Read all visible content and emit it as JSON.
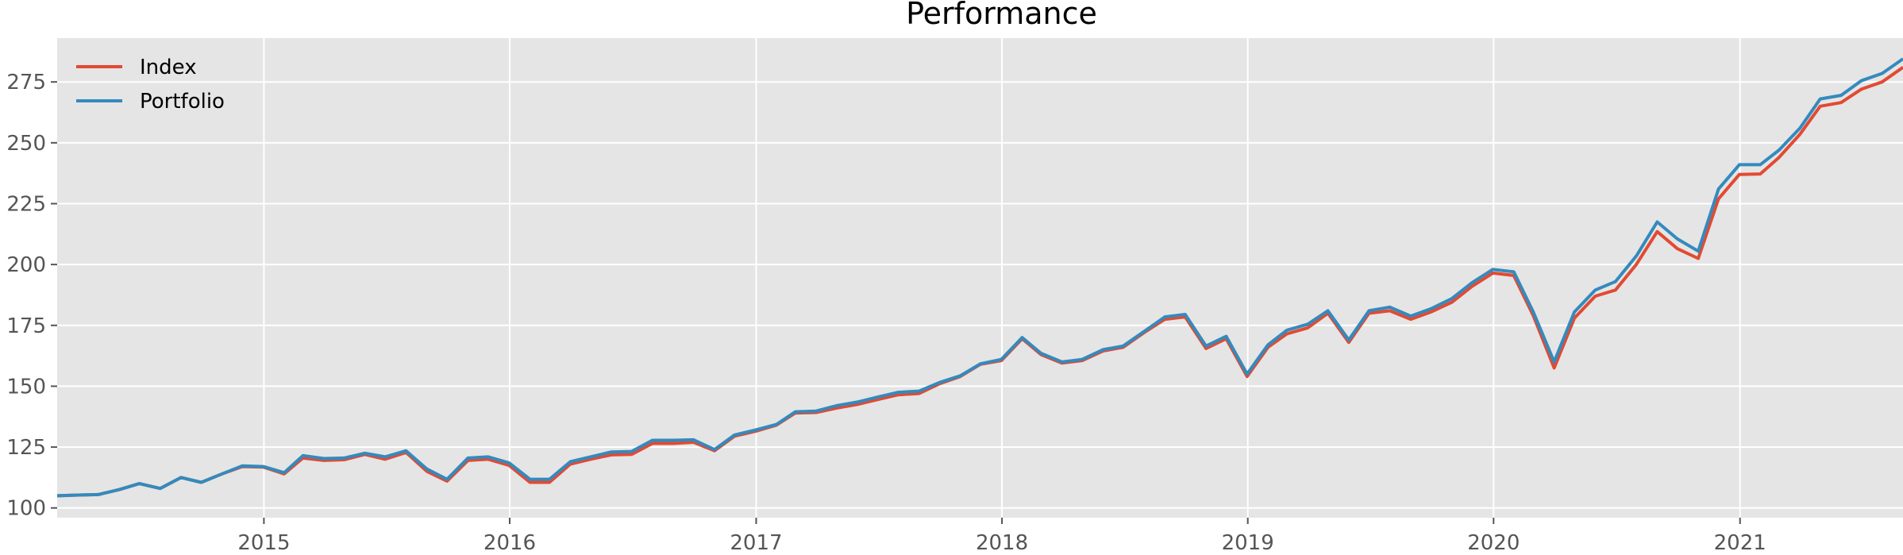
{
  "chart_data": {
    "type": "line",
    "title": "Performance",
    "xlabel": "",
    "ylabel": "",
    "x_axis_kind": "date",
    "xlim": [
      "2014-02-28",
      "2021-08-31"
    ],
    "ylim": [
      96,
      293
    ],
    "x_ticks": [
      {
        "date": "2015-01-01",
        "label": "2015"
      },
      {
        "date": "2016-01-01",
        "label": "2016"
      },
      {
        "date": "2017-01-01",
        "label": "2017"
      },
      {
        "date": "2018-01-01",
        "label": "2018"
      },
      {
        "date": "2019-01-01",
        "label": "2019"
      },
      {
        "date": "2020-01-01",
        "label": "2020"
      },
      {
        "date": "2021-01-01",
        "label": "2021"
      }
    ],
    "y_ticks": [
      100,
      125,
      150,
      175,
      200,
      225,
      250,
      275
    ],
    "grid": true,
    "legend_position": "upper-left",
    "background_color": "#e5e5e5",
    "grid_color": "#ffffff",
    "x": [
      "2014-02-28",
      "2014-03-31",
      "2014-04-30",
      "2014-05-31",
      "2014-06-30",
      "2014-07-31",
      "2014-08-31",
      "2014-09-30",
      "2014-10-31",
      "2014-11-30",
      "2014-12-31",
      "2015-01-31",
      "2015-02-28",
      "2015-03-31",
      "2015-04-30",
      "2015-05-31",
      "2015-06-30",
      "2015-07-31",
      "2015-08-31",
      "2015-09-30",
      "2015-10-31",
      "2015-11-30",
      "2015-12-31",
      "2016-01-31",
      "2016-02-29",
      "2016-03-31",
      "2016-04-30",
      "2016-05-31",
      "2016-06-30",
      "2016-07-31",
      "2016-08-31",
      "2016-09-30",
      "2016-10-31",
      "2016-11-30",
      "2016-12-31",
      "2017-01-31",
      "2017-02-28",
      "2017-03-31",
      "2017-04-30",
      "2017-05-31",
      "2017-06-30",
      "2017-07-31",
      "2017-08-31",
      "2017-09-30",
      "2017-10-31",
      "2017-11-30",
      "2017-12-31",
      "2018-01-31",
      "2018-02-28",
      "2018-03-31",
      "2018-04-30",
      "2018-05-31",
      "2018-06-30",
      "2018-07-31",
      "2018-08-31",
      "2018-09-30",
      "2018-10-31",
      "2018-11-30",
      "2018-12-31",
      "2019-01-31",
      "2019-02-28",
      "2019-03-31",
      "2019-04-30",
      "2019-05-31",
      "2019-06-30",
      "2019-07-31",
      "2019-08-31",
      "2019-09-30",
      "2019-10-31",
      "2019-11-30",
      "2019-12-31",
      "2020-01-31",
      "2020-02-29",
      "2020-03-31",
      "2020-04-30",
      "2020-05-31",
      "2020-06-30",
      "2020-07-31",
      "2020-08-31",
      "2020-09-30",
      "2020-10-31",
      "2020-11-30",
      "2020-12-31",
      "2021-01-31",
      "2021-02-28",
      "2021-03-31",
      "2021-04-30",
      "2021-05-31",
      "2021-06-30",
      "2021-07-31",
      "2021-08-31"
    ],
    "series": [
      {
        "name": "Index",
        "color": "#e24a33",
        "values": [
          105,
          105.3,
          105.5,
          107.5,
          110,
          108,
          112.5,
          110.5,
          114,
          117,
          116.8,
          114,
          120.5,
          119.5,
          119.8,
          122,
          120,
          122.8,
          115,
          111,
          119.5,
          120,
          117.5,
          110.5,
          110.5,
          118,
          120,
          121.8,
          122,
          126.5,
          126.5,
          127,
          123.5,
          129.5,
          131.5,
          134,
          139,
          139.2,
          141,
          142.5,
          144.5,
          146.5,
          147,
          151,
          154,
          159,
          160.5,
          169.5,
          163,
          159.5,
          160.5,
          164.5,
          166,
          172,
          177.5,
          178.5,
          165.5,
          169.5,
          154,
          166,
          171.5,
          174,
          180,
          168,
          180,
          181,
          177.5,
          180.5,
          184.5,
          191,
          196.5,
          195.5,
          179,
          157.5,
          178,
          187,
          189.5,
          200,
          213.5,
          206.5,
          202.5,
          227,
          237,
          237.2,
          244,
          253.5,
          265,
          266.5,
          272,
          275,
          281
        ]
      },
      {
        "name": "Portfolio",
        "color": "#348abd",
        "values": [
          105,
          105.3,
          105.5,
          107.5,
          110,
          108,
          112.5,
          110.5,
          114,
          117.3,
          117,
          114.5,
          121.5,
          120.3,
          120.5,
          122.5,
          121,
          123.5,
          116,
          111.8,
          120.5,
          121,
          118.5,
          111.8,
          111.8,
          119,
          121,
          123,
          123.2,
          127.8,
          127.8,
          128,
          124,
          130,
          132,
          134.3,
          139.5,
          139.8,
          142,
          143.5,
          145.5,
          147.5,
          148,
          151.5,
          154.3,
          159.2,
          161,
          170,
          163.5,
          160,
          161,
          165,
          166.5,
          172.5,
          178.5,
          179.5,
          166.5,
          170.5,
          155,
          167,
          173,
          175.5,
          181,
          169,
          181,
          182.5,
          178.8,
          181.8,
          186,
          192.5,
          198,
          197,
          180.5,
          160,
          180.5,
          189.5,
          193,
          203.5,
          217.5,
          210.5,
          205.5,
          231,
          241,
          241,
          247,
          256,
          268,
          269.5,
          275.5,
          278.5,
          284.5
        ]
      }
    ]
  }
}
